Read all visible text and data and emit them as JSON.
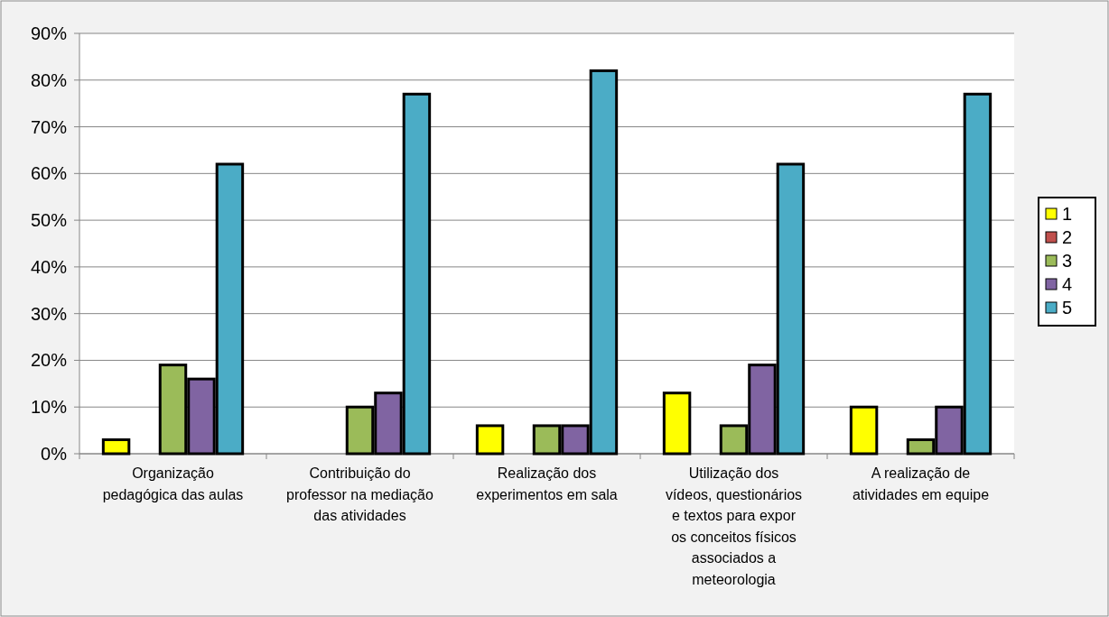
{
  "chart_data": {
    "type": "bar",
    "categories": [
      "Organização pedagógica das aulas",
      "Contribuição do professor na mediação das atividades",
      "Realização dos experimentos em sala",
      "Utilização dos vídeos, questionários e textos para expor os conceitos físicos associados a meteorologia",
      "A realização de atividades em equipe"
    ],
    "series": [
      {
        "name": "1",
        "color": "#ffff00",
        "values": [
          3,
          0,
          6,
          13,
          10
        ]
      },
      {
        "name": "2",
        "color": "#c0504d",
        "values": [
          0,
          0,
          0,
          0,
          0
        ]
      },
      {
        "name": "3",
        "color": "#9bbb59",
        "values": [
          19,
          10,
          6,
          6,
          3
        ]
      },
      {
        "name": "4",
        "color": "#8064a2",
        "values": [
          16,
          13,
          6,
          19,
          10
        ]
      },
      {
        "name": "5",
        "color": "#4bacc6",
        "values": [
          62,
          77,
          82,
          62,
          77
        ]
      }
    ],
    "ylim": [
      0,
      90
    ],
    "yticks": [
      {
        "value": 0,
        "label": "0%"
      },
      {
        "value": 10,
        "label": "10%"
      },
      {
        "value": 20,
        "label": "20%"
      },
      {
        "value": 30,
        "label": "30%"
      },
      {
        "value": 40,
        "label": "40%"
      },
      {
        "value": 50,
        "label": "50%"
      },
      {
        "value": 60,
        "label": "60%"
      },
      {
        "value": 70,
        "label": "70%"
      },
      {
        "value": 80,
        "label": "80%"
      },
      {
        "value": 90,
        "label": "90%"
      }
    ],
    "grid": "y",
    "legend": "right"
  }
}
